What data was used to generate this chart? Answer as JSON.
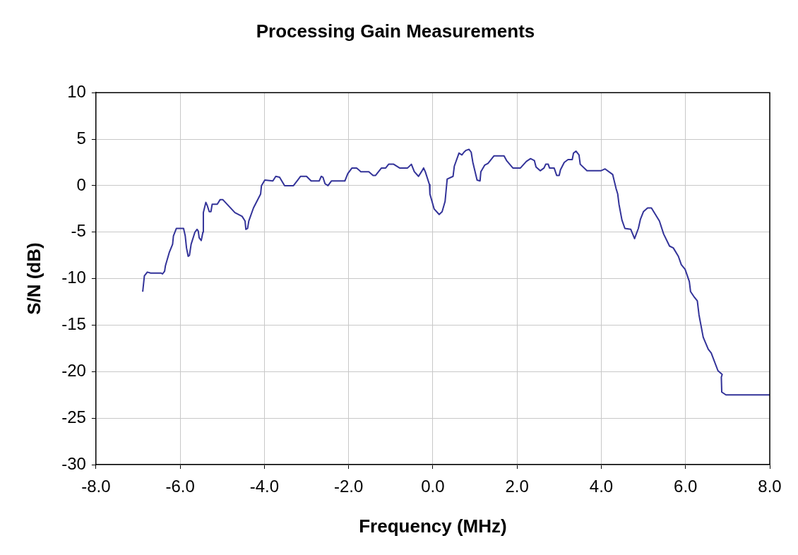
{
  "chart_data": {
    "type": "line",
    "title": "Processing Gain Measurements",
    "xlabel": "Frequency (MHz)",
    "ylabel": "S/N (dB)",
    "xlim": [
      -8,
      8
    ],
    "xticks": [
      {
        "value": -8,
        "label": "-8.0"
      },
      {
        "value": -6,
        "label": "-6.0"
      },
      {
        "value": -4,
        "label": "-4.0"
      },
      {
        "value": -2,
        "label": "-2.0"
      },
      {
        "value": 0,
        "label": "0.0"
      },
      {
        "value": 2,
        "label": "2.0"
      },
      {
        "value": 4,
        "label": "4.0"
      },
      {
        "value": 6,
        "label": "6.0"
      },
      {
        "value": 8,
        "label": "8.0"
      }
    ],
    "ylim": [
      -30,
      10
    ],
    "yticks": [
      -30,
      -25,
      -20,
      -15,
      -10,
      -5,
      0,
      5,
      10
    ],
    "grid": true,
    "legend": false,
    "marker": "none",
    "line_style": "solid",
    "series": [
      {
        "color": "#333399",
        "x": [
          -6.89,
          -6.85,
          -6.78,
          -6.7,
          -6.45,
          -6.42,
          -6.37,
          -6.35,
          -6.26,
          -6.18,
          -6.16,
          -6.09,
          -5.92,
          -5.88,
          -5.85,
          -5.81,
          -5.78,
          -5.74,
          -5.65,
          -5.6,
          -5.57,
          -5.55,
          -5.5,
          -5.46,
          -5.45,
          -5.39,
          -5.36,
          -5.31,
          -5.27,
          -5.24,
          -5.12,
          -5.05,
          -4.99,
          -4.7,
          -4.53,
          -4.46,
          -4.44,
          -4.4,
          -4.37,
          -4.26,
          -4.09,
          -4.07,
          -3.99,
          -3.8,
          -3.73,
          -3.64,
          -3.52,
          -3.31,
          -3.14,
          -3.0,
          -2.89,
          -2.7,
          -2.65,
          -2.61,
          -2.56,
          -2.49,
          -2.41,
          -2.09,
          -2.02,
          -1.92,
          -1.81,
          -1.71,
          -1.52,
          -1.42,
          -1.36,
          -1.22,
          -1.12,
          -1.05,
          -0.93,
          -0.79,
          -0.6,
          -0.51,
          -0.44,
          -0.34,
          -0.27,
          -0.22,
          -0.18,
          -0.08,
          -0.07,
          0.03,
          0.15,
          0.22,
          0.29,
          0.34,
          0.48,
          0.51,
          0.62,
          0.69,
          0.74,
          0.79,
          0.86,
          0.91,
          0.95,
          1.05,
          1.12,
          1.14,
          1.23,
          1.31,
          1.45,
          1.69,
          1.75,
          1.9,
          2.08,
          2.22,
          2.32,
          2.41,
          2.45,
          2.55,
          2.64,
          2.68,
          2.74,
          2.77,
          2.88,
          2.94,
          3.0,
          3.03,
          3.12,
          3.21,
          3.31,
          3.34,
          3.4,
          3.47,
          3.5,
          3.66,
          3.99,
          4.09,
          4.27,
          4.35,
          4.39,
          4.42,
          4.49,
          4.56,
          4.7,
          4.79,
          4.88,
          4.93,
          5.0,
          5.1,
          5.19,
          5.38,
          5.48,
          5.62,
          5.71,
          5.83,
          5.9,
          5.99,
          6.09,
          6.12,
          6.21,
          6.28,
          6.32,
          6.42,
          6.54,
          6.61,
          6.77,
          6.87,
          6.85,
          6.86,
          6.96,
          8.0
        ],
        "values": [
          -11.4,
          -9.7,
          -9.3,
          -9.4,
          -9.4,
          -9.5,
          -9.2,
          -8.6,
          -7.2,
          -6.3,
          -5.4,
          -4.6,
          -4.6,
          -5.4,
          -6.7,
          -7.6,
          -7.5,
          -6.3,
          -5.0,
          -4.7,
          -4.9,
          -5.6,
          -5.9,
          -5.0,
          -2.9,
          -1.8,
          -2.1,
          -2.8,
          -2.8,
          -2.0,
          -2.0,
          -1.5,
          -1.5,
          -2.9,
          -3.3,
          -3.8,
          -4.7,
          -4.6,
          -3.8,
          -2.4,
          -0.9,
          0.0,
          0.6,
          0.5,
          1.0,
          0.9,
          0.0,
          0.0,
          1.0,
          1.0,
          0.5,
          0.5,
          1.0,
          0.9,
          0.2,
          0.0,
          0.5,
          0.5,
          1.3,
          1.9,
          1.9,
          1.5,
          1.5,
          1.1,
          1.1,
          1.9,
          1.9,
          2.3,
          2.3,
          1.9,
          1.9,
          2.3,
          1.5,
          1.0,
          1.5,
          1.9,
          1.5,
          0.1,
          -0.9,
          -2.5,
          -3.1,
          -2.8,
          -1.7,
          0.7,
          1.0,
          2.1,
          3.5,
          3.3,
          3.6,
          3.8,
          3.9,
          3.6,
          2.5,
          0.6,
          0.5,
          1.5,
          2.2,
          2.4,
          3.2,
          3.2,
          2.7,
          1.9,
          1.9,
          2.6,
          2.9,
          2.7,
          2.0,
          1.6,
          1.9,
          2.3,
          2.3,
          1.9,
          1.9,
          1.1,
          1.1,
          1.7,
          2.5,
          2.8,
          2.8,
          3.5,
          3.7,
          3.3,
          2.3,
          1.6,
          1.6,
          1.8,
          1.2,
          -0.3,
          -0.9,
          -2.0,
          -3.7,
          -4.6,
          -4.7,
          -5.7,
          -4.6,
          -3.6,
          -2.8,
          -2.4,
          -2.4,
          -3.8,
          -5.2,
          -6.5,
          -6.7,
          -7.6,
          -8.5,
          -9.0,
          -10.3,
          -11.4,
          -12.0,
          -12.4,
          -13.9,
          -16.3,
          -17.6,
          -18.0,
          -19.9,
          -20.3,
          -20.6,
          -22.2,
          -22.5,
          -22.5
        ]
      }
    ]
  }
}
